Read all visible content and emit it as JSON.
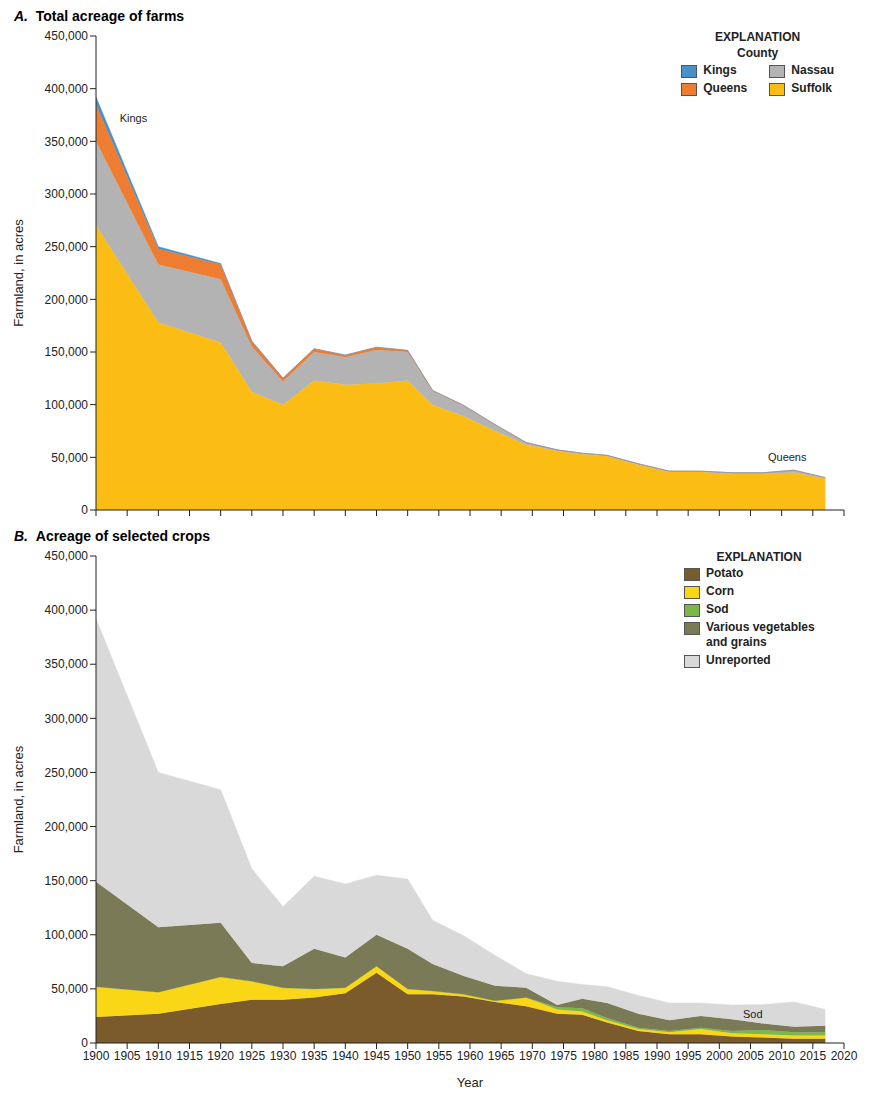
{
  "chart_data": [
    {
      "type": "area",
      "title": "A. Total acreage of farms",
      "y_label": "Farmland, in acres",
      "stacked": true,
      "grid": false,
      "tick_labels": "y",
      "legend": "upper right",
      "legend_title": "EXPLANATION",
      "legend_subtitle": "County",
      "x": [
        1900,
        1910,
        1920,
        1925,
        1930,
        1935,
        1940,
        1945,
        1950,
        1954,
        1959,
        1964,
        1969,
        1974,
        1978,
        1982,
        1987,
        1992,
        1997,
        2002,
        2007,
        2012,
        2017
      ],
      "xlim": [
        1900,
        2020
      ],
      "xticks": [
        1900,
        1905,
        1910,
        1915,
        1920,
        1925,
        1930,
        1935,
        1940,
        1945,
        1950,
        1955,
        1960,
        1965,
        1970,
        1975,
        1980,
        1985,
        1990,
        1995,
        2000,
        2005,
        2010,
        2015,
        2020
      ],
      "ylim": [
        0,
        450000
      ],
      "yticks": [
        0,
        {
          "value": 50000,
          "label": "50,000"
        },
        {
          "value": 100000,
          "label": "100,000"
        },
        {
          "value": 150000,
          "label": "150,000"
        },
        {
          "value": 200000,
          "label": "200,000"
        },
        {
          "value": 250000,
          "label": "250,000"
        },
        {
          "value": 300000,
          "label": "300,000"
        },
        {
          "value": 350000,
          "label": "350,000"
        },
        {
          "value": 400000,
          "label": "400,000"
        },
        {
          "value": 450000,
          "label": "450,000"
        }
      ],
      "series": [
        {
          "name": "Suffolk",
          "color": "#fbbd13",
          "values": [
            270000,
            178000,
            159000,
            112000,
            100000,
            123000,
            119000,
            120000,
            123000,
            100000,
            89000,
            75000,
            62000,
            56000,
            53000,
            51000,
            43000,
            36000,
            36000,
            34500,
            34500,
            35700,
            30000
          ]
        },
        {
          "name": "Nassau",
          "color": "#b3b3b3",
          "values": [
            80000,
            55000,
            60000,
            43000,
            22000,
            27000,
            26000,
            32000,
            27000,
            13000,
            10000,
            6000,
            2000,
            1000,
            800,
            800,
            800,
            800,
            800,
            800,
            800,
            2000,
            600
          ]
        },
        {
          "name": "Queens",
          "color": "#ee7d31",
          "values": [
            35000,
            15000,
            14000,
            5000,
            3000,
            3000,
            2000,
            2500,
            1500,
            500,
            300,
            200,
            100,
            100,
            100,
            100,
            100,
            100,
            100,
            100,
            100,
            100,
            100
          ]
        },
        {
          "name": "Kings",
          "color": "#4a90c8",
          "values": [
            7000,
            2000,
            1000,
            500,
            300,
            200,
            100,
            100,
            100,
            0,
            0,
            0,
            0,
            0,
            0,
            0,
            0,
            0,
            0,
            0,
            0,
            0,
            0
          ]
        }
      ],
      "annotations": [
        {
          "text": "Kings",
          "x": 1903,
          "y": 372000
        },
        {
          "text": "Queens",
          "x": 2007,
          "y": 50000
        }
      ]
    },
    {
      "type": "area",
      "title": "B. Acreage of selected crops",
      "x_label": "Year",
      "y_label": "Farmland, in acres",
      "stacked": true,
      "grid": false,
      "legend": "upper right",
      "legend_title": "EXPLANATION",
      "x": [
        1900,
        1910,
        1920,
        1925,
        1930,
        1935,
        1940,
        1945,
        1950,
        1954,
        1959,
        1964,
        1969,
        1974,
        1978,
        1982,
        1987,
        1992,
        1997,
        2002,
        2007,
        2012,
        2017
      ],
      "xlim": [
        1900,
        2020
      ],
      "xticks": [
        1900,
        1905,
        1910,
        1915,
        1920,
        1925,
        1930,
        1935,
        1940,
        1945,
        1950,
        1955,
        1960,
        1965,
        1970,
        1975,
        1980,
        1985,
        1990,
        1995,
        2000,
        2005,
        2010,
        2015,
        2020
      ],
      "ylim": [
        0,
        450000
      ],
      "yticks": [
        0,
        {
          "value": 50000,
          "label": "50,000"
        },
        {
          "value": 100000,
          "label": "100,000"
        },
        {
          "value": 150000,
          "label": "150,000"
        },
        {
          "value": 200000,
          "label": "200,000"
        },
        {
          "value": 250000,
          "label": "250,000"
        },
        {
          "value": 300000,
          "label": "300,000"
        },
        {
          "value": 350000,
          "label": "350,000"
        },
        {
          "value": 400000,
          "label": "400,000"
        },
        {
          "value": 450000,
          "label": "450,000"
        }
      ],
      "series": [
        {
          "name": "Potato",
          "color": "#7b5a2c",
          "values": [
            24000,
            27000,
            36000,
            40000,
            40000,
            42000,
            46000,
            65000,
            45000,
            45000,
            43000,
            38000,
            34000,
            27000,
            26000,
            19000,
            11000,
            8000,
            8000,
            6000,
            5000,
            4000,
            4000
          ]
        },
        {
          "name": "Corn",
          "color": "#f9d716",
          "values": [
            28000,
            20000,
            25000,
            17000,
            11000,
            8000,
            5000,
            6000,
            5000,
            3000,
            2000,
            1000,
            8000,
            4000,
            3000,
            2000,
            2000,
            2000,
            5000,
            3000,
            3000,
            3000,
            3000
          ]
        },
        {
          "name": "Sod",
          "color": "#7bb848",
          "values": [
            0,
            0,
            0,
            0,
            0,
            0,
            0,
            0,
            0,
            0,
            0,
            0,
            0,
            2000,
            3000,
            2000,
            1000,
            1000,
            1000,
            2000,
            4000,
            3000,
            3000
          ]
        },
        {
          "name": "Various vegetables and grains",
          "color": "#7a7a56",
          "values": [
            97000,
            60000,
            50000,
            17000,
            20000,
            37000,
            28000,
            29000,
            37000,
            25000,
            17000,
            14000,
            9000,
            2000,
            9000,
            14000,
            13000,
            10000,
            11000,
            11000,
            6000,
            5000,
            6000
          ]
        },
        {
          "name": "Unreported",
          "color": "#d9d9d9",
          "values": [
            243000,
            143000,
            123000,
            87000,
            55000,
            67000,
            68000,
            55000,
            64500,
            40500,
            37000,
            28000,
            13000,
            22000,
            13000,
            15000,
            17000,
            16000,
            12000,
            13000,
            17500,
            23000,
            15000
          ]
        }
      ],
      "annotations": [
        {
          "text": "Sod",
          "x": 2003,
          "y": 27000
        }
      ]
    }
  ]
}
